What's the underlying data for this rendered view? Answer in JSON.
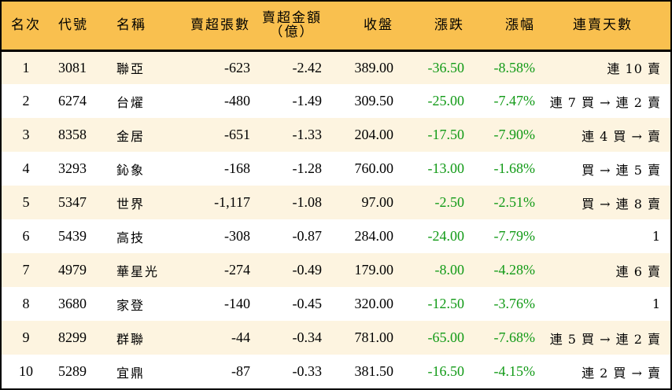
{
  "table": {
    "headers": {
      "rank": "名次",
      "code": "代號",
      "name": "名稱",
      "net_sell_volume": "賣超張數",
      "net_sell_amount_line1": "賣超金額",
      "net_sell_amount_line2": "（億）",
      "close": "收盤",
      "change": "漲跌",
      "change_pct": "漲幅",
      "streak": "連賣天數"
    },
    "rows": [
      {
        "rank": "1",
        "code": "3081",
        "name": "聯亞",
        "volume": "-623",
        "amount": "-2.42",
        "close": "389.00",
        "change": "-36.50",
        "pct": "-8.58%",
        "streak": "連 10 賣"
      },
      {
        "rank": "2",
        "code": "6274",
        "name": "台燿",
        "volume": "-480",
        "amount": "-1.49",
        "close": "309.50",
        "change": "-25.00",
        "pct": "-7.47%",
        "streak": "連 7 買 → 連 2 賣"
      },
      {
        "rank": "3",
        "code": "8358",
        "name": "金居",
        "volume": "-651",
        "amount": "-1.33",
        "close": "204.00",
        "change": "-17.50",
        "pct": "-7.90%",
        "streak": "連 4 買 → 賣"
      },
      {
        "rank": "4",
        "code": "3293",
        "name": "鈊象",
        "volume": "-168",
        "amount": "-1.28",
        "close": "760.00",
        "change": "-13.00",
        "pct": "-1.68%",
        "streak": "買 → 連 5 賣"
      },
      {
        "rank": "5",
        "code": "5347",
        "name": "世界",
        "volume": "-1,117",
        "amount": "-1.08",
        "close": "97.00",
        "change": "-2.50",
        "pct": "-2.51%",
        "streak": "買 → 連 8 賣"
      },
      {
        "rank": "6",
        "code": "5439",
        "name": "高技",
        "volume": "-308",
        "amount": "-0.87",
        "close": "284.00",
        "change": "-24.00",
        "pct": "-7.79%",
        "streak": "1"
      },
      {
        "rank": "7",
        "code": "4979",
        "name": "華星光",
        "volume": "-274",
        "amount": "-0.49",
        "close": "179.00",
        "change": "-8.00",
        "pct": "-4.28%",
        "streak": "連 6 賣"
      },
      {
        "rank": "8",
        "code": "3680",
        "name": "家登",
        "volume": "-140",
        "amount": "-0.45",
        "close": "320.00",
        "change": "-12.50",
        "pct": "-3.76%",
        "streak": "1"
      },
      {
        "rank": "9",
        "code": "8299",
        "name": "群聯",
        "volume": "-44",
        "amount": "-0.34",
        "close": "781.00",
        "change": "-65.00",
        "pct": "-7.68%",
        "streak": "連 5 買 → 連 2 賣"
      },
      {
        "rank": "10",
        "code": "5289",
        "name": "宜鼎",
        "volume": "-87",
        "amount": "-0.33",
        "close": "381.50",
        "change": "-16.50",
        "pct": "-4.15%",
        "streak": "連 2 買 → 賣"
      }
    ]
  },
  "colors": {
    "header_bg": "#f9c04f",
    "row_alt_bg": "#fdf4e0",
    "negative_green": "#119a16"
  }
}
